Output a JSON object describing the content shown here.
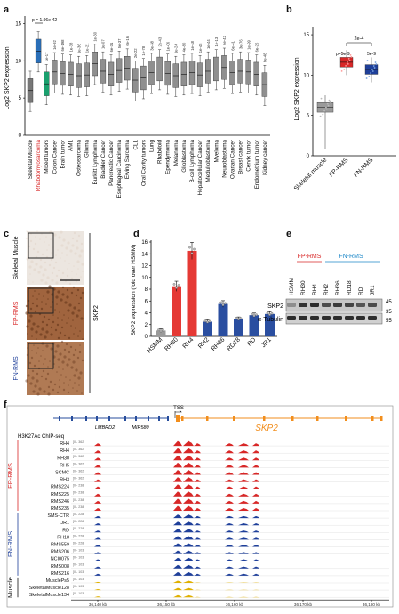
{
  "panels": {
    "a": "a",
    "b": "b",
    "c": "c",
    "d": "d",
    "e": "e",
    "f": "f"
  },
  "panel_a": {
    "ylabel": "Log2 SKP2 expression",
    "yticks": [
      "0",
      "5",
      "10",
      "15"
    ],
    "pvalue": "p = 1.96e-42",
    "categories": [
      "Skeletal Muscle",
      "Rhabdomyosarcoma",
      "Mixed tumors",
      "Colon Cancer",
      "Brain tumor",
      "AML",
      "Osteosarcoma",
      "Glioma",
      "Burkitt Lymphoma",
      "Bladder Cancer",
      "Pancreatic Cancer",
      "Esophageal Carcinoma",
      "Ewing Sarcoma",
      "CLL",
      "Oral Cavity tumors",
      "Lung",
      "Rhabdoid",
      "Ependymoma",
      "Melanoma",
      "Glioblastoma",
      "B-cell Lymphoma",
      "Hepatocellular Cancer",
      "Medulloblastoma",
      "Myeloma",
      "Neuroblastoma",
      "Ovarian Cancer",
      "Breast cancer",
      "Cervix tumor",
      "Endometrium tumor",
      "Kidney cancer"
    ],
    "pvals": [
      "",
      "",
      "1e-17",
      "1e-92",
      "6e-198",
      "1e-38",
      "1e-36",
      "1e-21",
      "1e-30",
      "1e-07",
      "6e-31",
      "5e-37",
      "6e-16",
      "2e-22",
      "1e-78",
      "3e-38",
      "2e-43",
      "1e-06",
      "1e-24",
      "4e-80",
      "1e-48",
      "1e-45",
      "1e-44",
      "1e-13",
      "6e-42",
      "6e-41",
      "3e-76",
      "1e-99",
      "6e-25",
      "6e-48"
    ],
    "medians": [
      6.0,
      11.3,
      6.9,
      8.5,
      8.3,
      8.2,
      8.0,
      8.1,
      9.6,
      8.6,
      8.2,
      8.7,
      9.0,
      7.4,
      7.7,
      8.4,
      8.9,
      8.3,
      8.0,
      8.2,
      8.4,
      8.1,
      8.6,
      8.9,
      9.1,
      8.4,
      8.6,
      8.5,
      8.2,
      6.8
    ],
    "highlight_index": 1
  },
  "panel_b": {
    "ylabel": "Log2 SKP2 expression",
    "yticks": [
      "0",
      "5",
      "10",
      "15"
    ],
    "categories": [
      "Skeletal muscle",
      "FP-RMS",
      "FN-RMS"
    ],
    "medians": [
      6.0,
      11.6,
      10.7
    ],
    "annotations": {
      "pair": "2e-4",
      "fp": "p=5e-9",
      "fn": "5e-9"
    }
  },
  "panel_c": {
    "rows": [
      "Skeletal Muscle",
      "FP-RMS",
      "FN-RMS"
    ],
    "side_label": "SKP2"
  },
  "panel_d": {
    "ylabel": "SKP2 expression (fold over HSMM)",
    "yticks": [
      "0",
      "2",
      "4",
      "6",
      "8",
      "10",
      "12",
      "14",
      "16"
    ],
    "categories": [
      "HSMM",
      "RH30",
      "RH4",
      "RH2",
      "RH36",
      "RD18",
      "RD",
      "JR1"
    ],
    "values": [
      1.0,
      8.5,
      14.5,
      2.5,
      5.5,
      3.0,
      3.6,
      3.8
    ],
    "colors": [
      "#9a9a9a",
      "#e53935",
      "#e53935",
      "#2a4ea0",
      "#2a4ea0",
      "#2a4ea0",
      "#2a4ea0",
      "#2a4ea0"
    ]
  },
  "panel_e": {
    "group_fp": "FP-RMS",
    "group_fn": "FN-RMS",
    "lanes": [
      "HSMM",
      "RH30",
      "RH4",
      "RH2",
      "RH36",
      "RD18",
      "RD",
      "JR1"
    ],
    "bands": [
      "SKP2",
      "α-Tubulin"
    ],
    "mw": [
      "45",
      "35",
      "55"
    ]
  },
  "panel_f": {
    "tss": "TSS",
    "genes": [
      "LMBRD2",
      "MIR580"
    ],
    "main_gene": "SKP2",
    "chip_label": "H3K27Ac ChIP-seq",
    "tracks": [
      {
        "name": "RH4",
        "range": "[0 - 362]",
        "group": "fp"
      },
      {
        "name": "RH4",
        "range": "[0 - 362]",
        "group": "fp"
      },
      {
        "name": "RH30",
        "range": "[0 - 362]",
        "group": "fp"
      },
      {
        "name": "RH5",
        "range": "[0 - 362]",
        "group": "fp"
      },
      {
        "name": "SCMC",
        "range": "[0 - 362]",
        "group": "fp"
      },
      {
        "name": "RH3",
        "range": "[0 - 362]",
        "group": "fp"
      },
      {
        "name": "RMS224",
        "range": "[0 - 238]",
        "group": "fp"
      },
      {
        "name": "RMS225",
        "range": "[0 - 238]",
        "group": "fp"
      },
      {
        "name": "RMS246",
        "range": "[0 - 238]",
        "group": "fp"
      },
      {
        "name": "RMS235",
        "range": "[0 - 238]",
        "group": "fp"
      },
      {
        "name": "SMS-CTR",
        "range": "[0 - 228]",
        "group": "fn"
      },
      {
        "name": "JR1",
        "range": "[0 - 228]",
        "group": "fn"
      },
      {
        "name": "RD",
        "range": "[0 - 228]",
        "group": "fn"
      },
      {
        "name": "RH18",
        "range": "[0 - 228]",
        "group": "fn"
      },
      {
        "name": "RMS559",
        "range": "[0 - 228]",
        "group": "fn"
      },
      {
        "name": "RMS206",
        "range": "[0 - 103]",
        "group": "fn"
      },
      {
        "name": "NCI0075",
        "range": "[0 - 103]",
        "group": "fn"
      },
      {
        "name": "RMS008",
        "range": "[0 - 103]",
        "group": "fn"
      },
      {
        "name": "RMS216",
        "range": "[0 - 103]",
        "group": "fn"
      },
      {
        "name": "MusclePs5",
        "range": "[0 - 103]",
        "group": "mu"
      },
      {
        "name": "SkeletalMuscle128",
        "range": "[0 - 103]",
        "group": "mu"
      },
      {
        "name": "SkeletalMuscle134",
        "range": "[0 - 103]",
        "group": "mu"
      }
    ],
    "groups": {
      "fp": "FP-RMS",
      "fn": "FN-RMS",
      "mu": "Muscle"
    },
    "xticks": [
      "36,140 kb",
      "36,150 kb",
      "36,160 kb",
      "36,170 kb",
      "36,180 kb"
    ]
  },
  "colors": {
    "fp": "#d82727",
    "fn": "#1e3f9a",
    "muscle": "#e0b000",
    "gene": "#f28e1c",
    "rms": "#1aa06e",
    "gene_blue": "#274d9c"
  }
}
